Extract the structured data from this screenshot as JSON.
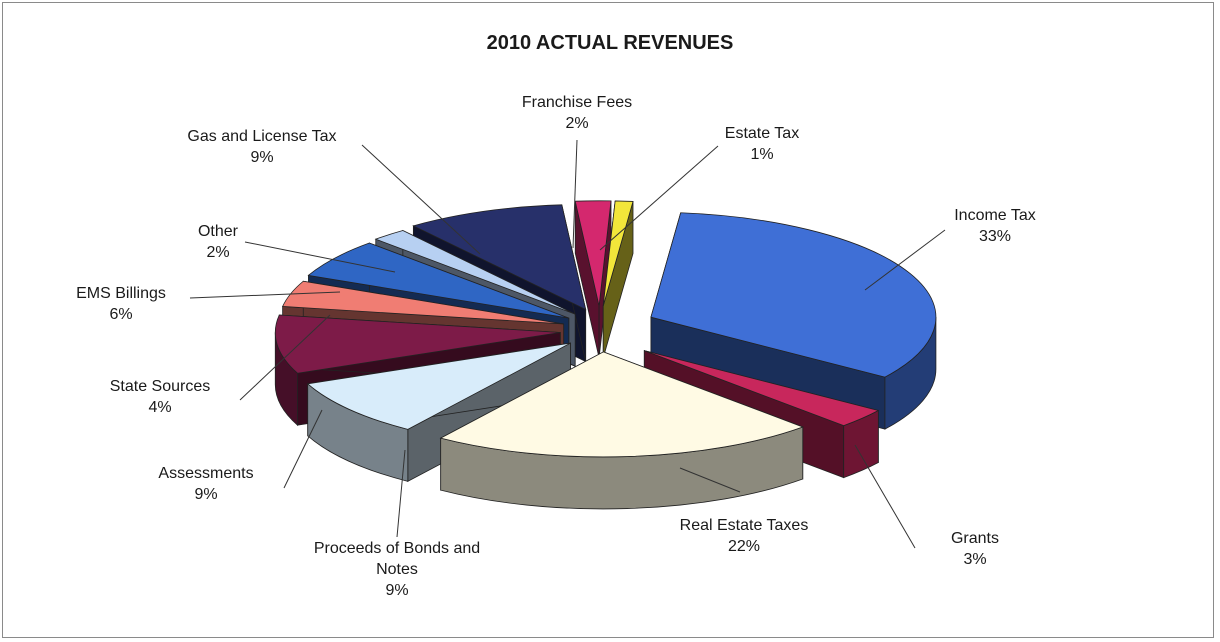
{
  "chart_data": {
    "type": "pie",
    "title": "2010 ACTUAL REVENUES",
    "slices": [
      {
        "label": "Income Tax",
        "value": 33,
        "value_label": "33%",
        "color": "#3f6fd6"
      },
      {
        "label": "Grants",
        "value": 3,
        "value_label": "3%",
        "color": "#c8275c"
      },
      {
        "label": "Real Estate Taxes",
        "value": 22,
        "value_label": "22%",
        "color": "#fffae4"
      },
      {
        "label": "Proceeds of Bonds and Notes",
        "value": 9,
        "value_label": "9%",
        "color": "#d8ecfa"
      },
      {
        "label": "Assessments",
        "value": 9,
        "value_label": "9%",
        "color": "#7d1b48"
      },
      {
        "label": "State Sources",
        "value": 4,
        "value_label": "4%",
        "color": "#f07d73"
      },
      {
        "label": "EMS Billings",
        "value": 6,
        "value_label": "6%",
        "color": "#2f66c4"
      },
      {
        "label": "Other",
        "value": 2,
        "value_label": "2%",
        "color": "#b7d0f2"
      },
      {
        "label": "Gas and License Tax",
        "value": 9,
        "value_label": "9%",
        "color": "#27306a"
      },
      {
        "label": "Franchise Fees",
        "value": 2,
        "value_label": "2%",
        "color": "#d4286e"
      },
      {
        "label": "Estate Tax",
        "value": 1,
        "value_label": "1%",
        "color": "#f2e63a"
      }
    ]
  }
}
